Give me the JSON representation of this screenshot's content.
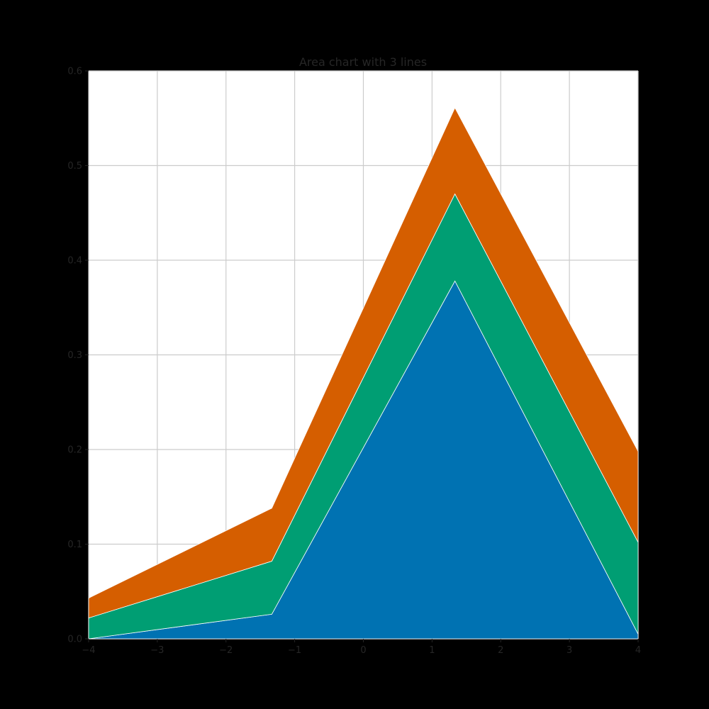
{
  "chart_data": {
    "type": "area",
    "stacked": true,
    "title": "Area chart with 3 lines",
    "xlabel": "",
    "ylabel": "",
    "x": [
      -4,
      -1.333,
      1.333,
      4
    ],
    "xlim": [
      -4,
      4
    ],
    "ylim": [
      0,
      0.6
    ],
    "xticks": [
      -4,
      -3,
      -2,
      -1,
      0,
      1,
      2,
      3,
      4
    ],
    "xtick_labels": [
      "−4",
      "−3",
      "−2",
      "−1",
      "0",
      "1",
      "2",
      "3",
      "4"
    ],
    "yticks": [
      0.0,
      0.1,
      0.2,
      0.3,
      0.4,
      0.5,
      0.6
    ],
    "ytick_labels": [
      "0.0",
      "0.1",
      "0.2",
      "0.3",
      "0.4",
      "0.5",
      "0.6"
    ],
    "grid": true,
    "series": [
      {
        "values": [
          0.0,
          0.026,
          0.378,
          0.005
        ],
        "color": "#0072B2"
      },
      {
        "values": [
          0.022,
          0.056,
          0.092,
          0.097
        ],
        "color": "#009E73"
      },
      {
        "values": [
          0.021,
          0.056,
          0.091,
          0.096
        ],
        "color": "#D55E00"
      }
    ]
  },
  "colors": {
    "background": "#000000",
    "plot_background": "#ffffff",
    "grid": "#cccccc",
    "text": "#262626"
  }
}
